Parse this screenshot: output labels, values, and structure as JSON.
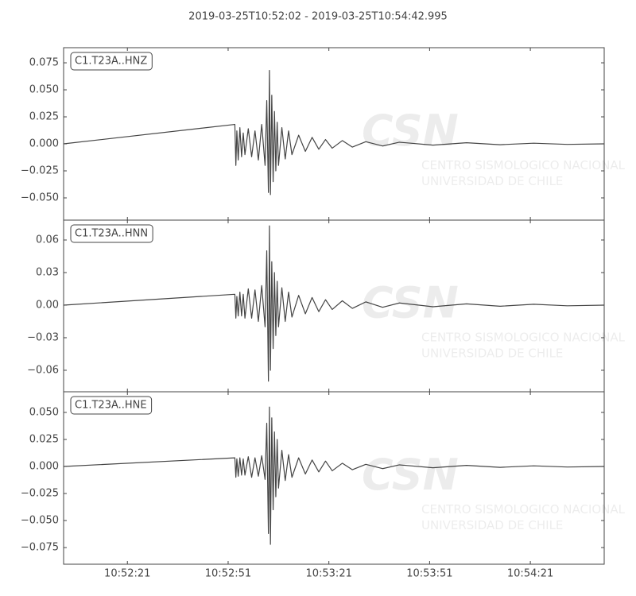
{
  "title": "2019-03-25T10:52:02  -  2019-03-25T10:54:42.995",
  "watermark": {
    "logo": "CSN",
    "name": [
      "CENTRO SISMOLOGICO NACIONAL",
      "UNIVERSIDAD DE CHILE"
    ]
  },
  "chart_data": [
    {
      "type": "line",
      "label": "C1.T23A..HNZ",
      "color": "#444444",
      "xlim": [
        0,
        160.995
      ],
      "xticks": [
        19,
        49,
        79,
        109,
        139
      ],
      "ylim": [
        -0.0706,
        0.089
      ],
      "yticks": [
        {
          "value": -0.05,
          "label": "−0.050"
        },
        {
          "value": -0.025,
          "label": "−0.025"
        },
        {
          "value": 0,
          "label": "0.000"
        },
        {
          "value": 0.025,
          "label": "0.025"
        },
        {
          "value": 0.05,
          "label": "0.050"
        },
        {
          "value": 0.075,
          "label": "0.075"
        }
      ],
      "x": [
        0,
        51,
        51.3,
        51.6,
        52,
        52.5,
        53,
        53.5,
        54,
        55,
        56,
        57,
        58,
        59,
        60,
        60.5,
        61,
        61.3,
        61.6,
        62,
        62.4,
        62.8,
        63.2,
        63.6,
        64,
        65,
        66,
        67,
        68,
        70,
        72,
        74,
        76,
        78,
        80,
        83,
        86,
        90,
        95,
        100,
        110,
        120,
        130,
        140,
        150,
        160.995
      ],
      "values": [
        0,
        0.018,
        -0.02,
        0.012,
        -0.015,
        0.015,
        -0.012,
        0.01,
        -0.01,
        0.014,
        -0.012,
        0.012,
        -0.015,
        0.018,
        -0.02,
        0.04,
        -0.045,
        0.068,
        -0.047,
        0.045,
        -0.035,
        0.03,
        -0.025,
        0.02,
        -0.02,
        0.015,
        -0.014,
        0.012,
        -0.01,
        0.008,
        -0.007,
        0.006,
        -0.005,
        0.004,
        -0.004,
        0.003,
        -0.003,
        0.002,
        -0.002,
        0.0015,
        -0.0012,
        0.001,
        -0.0008,
        0.0006,
        -0.0005,
        0
      ]
    },
    {
      "type": "line",
      "label": "C1.T23A..HNN",
      "color": "#444444",
      "xlim": [
        0,
        160.995
      ],
      "xticks": [
        19,
        49,
        79,
        109,
        139
      ],
      "ylim": [
        -0.0798,
        0.0783
      ],
      "yticks": [
        {
          "value": -0.06,
          "label": "−0.06"
        },
        {
          "value": -0.03,
          "label": "−0.03"
        },
        {
          "value": 0,
          "label": "0.00"
        },
        {
          "value": 0.03,
          "label": "0.03"
        },
        {
          "value": 0.06,
          "label": "0.06"
        }
      ],
      "x": [
        0,
        51,
        51.3,
        51.6,
        52,
        52.5,
        53,
        53.5,
        54,
        55,
        56,
        57,
        58,
        59,
        60,
        60.5,
        61,
        61.3,
        61.6,
        62,
        62.4,
        62.8,
        63.2,
        63.6,
        64,
        65,
        66,
        67,
        68,
        70,
        72,
        74,
        76,
        78,
        80,
        83,
        86,
        90,
        95,
        100,
        110,
        120,
        130,
        140,
        150,
        160.995
      ],
      "values": [
        0,
        0.01,
        -0.012,
        0.008,
        -0.01,
        0.012,
        -0.01,
        0.01,
        -0.012,
        0.015,
        -0.012,
        0.014,
        -0.015,
        0.018,
        -0.02,
        0.05,
        -0.07,
        0.073,
        -0.06,
        0.04,
        -0.04,
        0.03,
        -0.028,
        0.022,
        -0.02,
        0.016,
        -0.015,
        0.012,
        -0.011,
        0.009,
        -0.008,
        0.007,
        -0.006,
        0.005,
        -0.004,
        0.004,
        -0.003,
        0.003,
        -0.002,
        0.002,
        -0.0015,
        0.0012,
        -0.001,
        0.0008,
        -0.0006,
        0
      ]
    },
    {
      "type": "line",
      "label": "C1.T23A..HNE",
      "color": "#444444",
      "xlim": [
        0,
        160.995
      ],
      "xticks": [
        {
          "value": 19,
          "label": "10:52:21"
        },
        {
          "value": 49,
          "label": "10:52:51"
        },
        {
          "value": 79,
          "label": "10:53:21"
        },
        {
          "value": 109,
          "label": "10:53:51"
        },
        {
          "value": 139,
          "label": "10:54:21"
        }
      ],
      "ylim": [
        -0.0904,
        0.0691
      ],
      "yticks": [
        {
          "value": -0.075,
          "label": "−0.075"
        },
        {
          "value": -0.05,
          "label": "−0.050"
        },
        {
          "value": -0.025,
          "label": "−0.025"
        },
        {
          "value": 0,
          "label": "0.000"
        },
        {
          "value": 0.025,
          "label": "0.025"
        },
        {
          "value": 0.05,
          "label": "0.050"
        }
      ],
      "x": [
        0,
        51,
        51.3,
        51.6,
        52,
        52.5,
        53,
        53.5,
        54,
        55,
        56,
        57,
        58,
        59,
        60,
        60.5,
        61,
        61.3,
        61.6,
        62,
        62.4,
        62.8,
        63.2,
        63.6,
        64,
        65,
        66,
        67,
        68,
        70,
        72,
        74,
        76,
        78,
        80,
        83,
        86,
        90,
        95,
        100,
        110,
        120,
        130,
        140,
        150,
        160.995
      ],
      "values": [
        0,
        0.008,
        -0.01,
        0.007,
        -0.009,
        0.008,
        -0.008,
        0.007,
        -0.008,
        0.009,
        -0.01,
        0.008,
        -0.009,
        0.01,
        -0.012,
        0.04,
        -0.062,
        0.055,
        -0.072,
        0.045,
        -0.04,
        0.032,
        -0.028,
        0.025,
        -0.02,
        0.015,
        -0.013,
        0.011,
        -0.01,
        0.008,
        -0.007,
        0.006,
        -0.005,
        0.005,
        -0.004,
        0.003,
        -0.003,
        0.002,
        -0.002,
        0.0015,
        -0.0012,
        0.001,
        -0.0008,
        0.0006,
        -0.0005,
        0
      ]
    }
  ]
}
